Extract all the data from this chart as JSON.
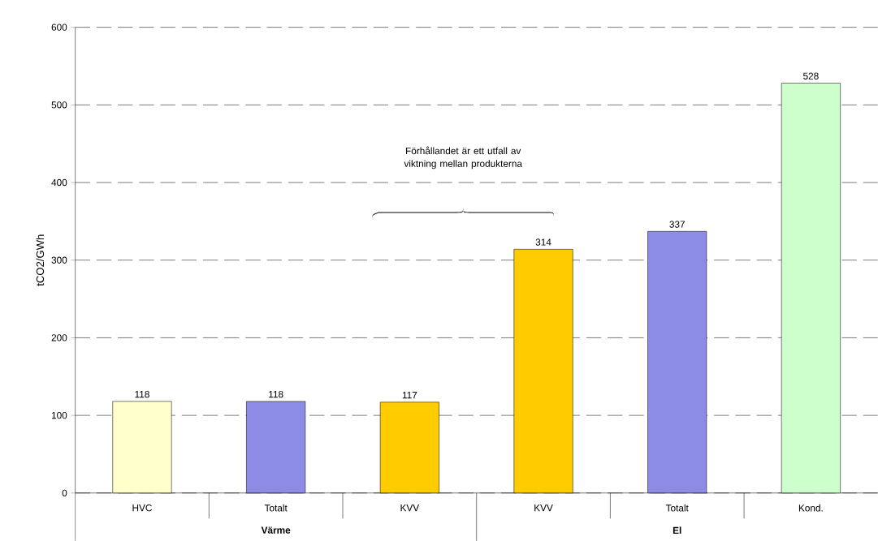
{
  "chart_data": {
    "type": "bar",
    "ylabel": "tCO2/GWh",
    "categories": [
      "HVC",
      "Totalt",
      "KVV",
      "KVV",
      "Totalt",
      "Kond."
    ],
    "values": [
      118,
      118,
      117,
      314,
      337,
      528
    ],
    "colors": [
      "#ffffcc",
      "#8c8ce6",
      "#ffcc00",
      "#ffcc00",
      "#8c8ce6",
      "#ccffcc"
    ],
    "ylim": [
      0,
      600
    ],
    "yticks": [
      0,
      100,
      200,
      300,
      400,
      500,
      600
    ],
    "grid": "y",
    "line_style": "dashed",
    "data_labels": true,
    "annotations": [
      "Förhållandet är ett utfall av viktning mellan produkterna",
      "Värme",
      "El"
    ]
  }
}
